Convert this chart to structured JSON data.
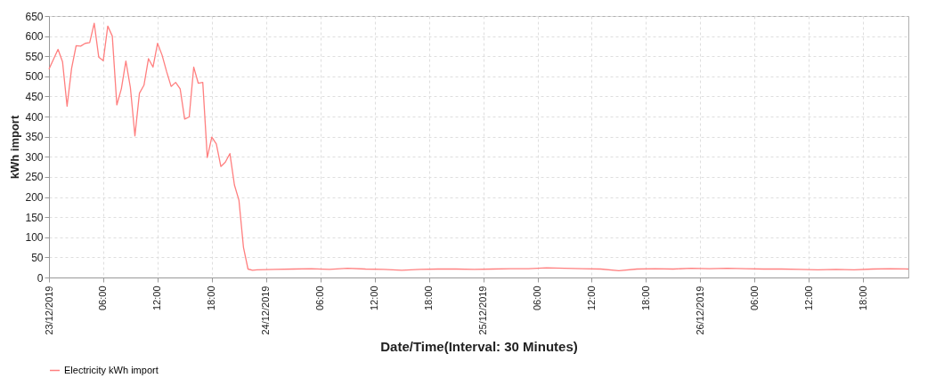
{
  "chart_data": {
    "type": "line",
    "xlabel": "Date/Time(Interval: 30 Minutes)",
    "ylabel": "kWh import",
    "legend": "bottom",
    "grid": true,
    "marker": "none",
    "line_style": "solid",
    "xlim": [
      "2019-12-23T00:00",
      "2019-12-26T23:00"
    ],
    "xticks": [
      {
        "value": "2019-12-23T00:00",
        "label": "23/12/2019"
      },
      {
        "value": "2019-12-23T06:00",
        "label": "06:00"
      },
      {
        "value": "2019-12-23T12:00",
        "label": "12:00"
      },
      {
        "value": "2019-12-23T18:00",
        "label": "18:00"
      },
      {
        "value": "2019-12-24T00:00",
        "label": "24/12/2019"
      },
      {
        "value": "2019-12-24T06:00",
        "label": "06:00"
      },
      {
        "value": "2019-12-24T12:00",
        "label": "12:00"
      },
      {
        "value": "2019-12-24T18:00",
        "label": "18:00"
      },
      {
        "value": "2019-12-25T00:00",
        "label": "25/12/2019"
      },
      {
        "value": "2019-12-25T06:00",
        "label": "06:00"
      },
      {
        "value": "2019-12-25T12:00",
        "label": "12:00"
      },
      {
        "value": "2019-12-25T18:00",
        "label": "18:00"
      },
      {
        "value": "2019-12-26T00:00",
        "label": "26/12/2019"
      },
      {
        "value": "2019-12-26T06:00",
        "label": "06:00"
      },
      {
        "value": "2019-12-26T12:00",
        "label": "12:00"
      },
      {
        "value": "2019-12-26T18:00",
        "label": "18:00"
      }
    ],
    "ylim": [
      0,
      650
    ],
    "yticks": [
      0,
      50,
      100,
      150,
      200,
      250,
      300,
      350,
      400,
      450,
      500,
      550,
      600,
      650
    ],
    "x": [
      "2019-12-23T00:00",
      "2019-12-23T01:00",
      "2019-12-23T01:30",
      "2019-12-23T02:00",
      "2019-12-23T02:30",
      "2019-12-23T03:00",
      "2019-12-23T03:30",
      "2019-12-23T04:00",
      "2019-12-23T04:30",
      "2019-12-23T05:00",
      "2019-12-23T05:30",
      "2019-12-23T06:00",
      "2019-12-23T06:30",
      "2019-12-23T07:00",
      "2019-12-23T07:30",
      "2019-12-23T08:00",
      "2019-12-23T08:30",
      "2019-12-23T09:00",
      "2019-12-23T09:30",
      "2019-12-23T10:00",
      "2019-12-23T10:30",
      "2019-12-23T11:00",
      "2019-12-23T11:30",
      "2019-12-23T12:00",
      "2019-12-23T12:30",
      "2019-12-23T13:00",
      "2019-12-23T13:30",
      "2019-12-23T14:00",
      "2019-12-23T14:30",
      "2019-12-23T15:00",
      "2019-12-23T15:30",
      "2019-12-23T16:00",
      "2019-12-23T16:30",
      "2019-12-23T17:00",
      "2019-12-23T17:30",
      "2019-12-23T18:00",
      "2019-12-23T18:30",
      "2019-12-23T19:00",
      "2019-12-23T19:30",
      "2019-12-23T20:00",
      "2019-12-23T20:30",
      "2019-12-23T21:00",
      "2019-12-23T21:30",
      "2019-12-23T22:00",
      "2019-12-23T22:30",
      "2019-12-23T23:00",
      "2019-12-24T01:00",
      "2019-12-24T03:00",
      "2019-12-24T05:00",
      "2019-12-24T07:00",
      "2019-12-24T09:00",
      "2019-12-24T11:00",
      "2019-12-24T13:00",
      "2019-12-24T15:00",
      "2019-12-24T17:00",
      "2019-12-24T19:00",
      "2019-12-24T21:00",
      "2019-12-24T23:00",
      "2019-12-25T01:00",
      "2019-12-25T03:00",
      "2019-12-25T05:00",
      "2019-12-25T07:00",
      "2019-12-25T09:00",
      "2019-12-25T11:00",
      "2019-12-25T13:00",
      "2019-12-25T15:00",
      "2019-12-25T17:00",
      "2019-12-25T19:00",
      "2019-12-25T21:00",
      "2019-12-25T23:00",
      "2019-12-26T01:00",
      "2019-12-26T03:00",
      "2019-12-26T05:00",
      "2019-12-26T07:00",
      "2019-12-26T09:00",
      "2019-12-26T11:00",
      "2019-12-26T13:00",
      "2019-12-26T15:00",
      "2019-12-26T17:00",
      "2019-12-26T19:00",
      "2019-12-26T21:00",
      "2019-12-26T23:00"
    ],
    "series": [
      {
        "name": "Electricity kWh import",
        "color": "#ff7f7f",
        "values": [
          518,
          567,
          536,
          426,
          520,
          576,
          575,
          582,
          584,
          632,
          548,
          539,
          625,
          600,
          429,
          469,
          538,
          472,
          352,
          458,
          478,
          544,
          523,
          582,
          553,
          512,
          475,
          485,
          469,
          394,
          399,
          523,
          483,
          485,
          298,
          349,
          332,
          276,
          287,
          308,
          230,
          192,
          75,
          21,
          18,
          19,
          20,
          21,
          22,
          20,
          23,
          21,
          20,
          18,
          20,
          21,
          21,
          20,
          21,
          22,
          22,
          24,
          23,
          22,
          21,
          17,
          21,
          22,
          21,
          23,
          22,
          23,
          22,
          21,
          21,
          20,
          19,
          20,
          19,
          21,
          22,
          21
        ]
      }
    ]
  }
}
